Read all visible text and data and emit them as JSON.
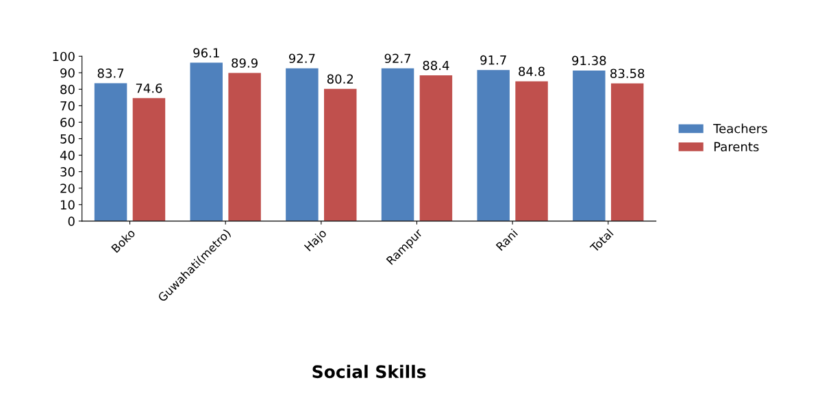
{
  "chart_data": {
    "type": "bar",
    "title": "Social Skills",
    "categories": [
      "Boko",
      "Guwahati(metro)",
      "Hajo",
      "Rampur",
      "Rani",
      "Total"
    ],
    "series": [
      {
        "name": "Teachers",
        "color": "#4f81bd",
        "values": [
          83.7,
          96.1,
          92.7,
          92.7,
          91.7,
          91.38
        ]
      },
      {
        "name": "Parents",
        "color": "#c0504d",
        "values": [
          74.6,
          89.9,
          80.2,
          88.4,
          84.8,
          83.58
        ]
      }
    ],
    "ylim": [
      0,
      100
    ],
    "yticks": [
      0,
      10,
      20,
      30,
      40,
      50,
      60,
      70,
      80,
      90,
      100
    ],
    "data_labels": true,
    "grid": false,
    "legend": "right"
  }
}
